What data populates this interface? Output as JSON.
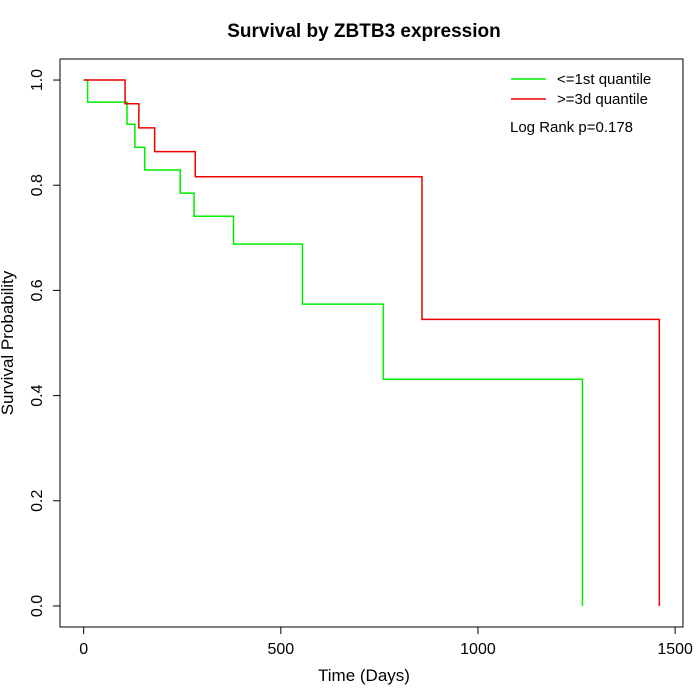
{
  "chart_data": {
    "type": "line",
    "title": "Survival by ZBTB3 expression",
    "xlabel": "Time (Days)",
    "ylabel": "Survival Probability",
    "xlim": [
      -60,
      1520
    ],
    "ylim": [
      -0.04,
      1.04
    ],
    "x_ticks": [
      0,
      500,
      1000,
      1500
    ],
    "x_tick_labels": [
      "0",
      "500",
      "1000",
      "1500"
    ],
    "y_ticks": [
      0.0,
      0.2,
      0.4,
      0.6,
      0.8,
      1.0
    ],
    "y_tick_labels": [
      "0.0",
      "0.2",
      "0.4",
      "0.6",
      "0.8",
      "1.0"
    ],
    "grid": false,
    "legend_position": "top-right",
    "annotation": "Log Rank p=0.178",
    "series": [
      {
        "name": "<=1st quantile",
        "color": "#00ee00",
        "step": true,
        "x": [
          0,
          10,
          110,
          130,
          155,
          245,
          280,
          380,
          555,
          760,
          1265
        ],
        "y": [
          1.0,
          0.958,
          0.916,
          0.872,
          0.829,
          0.785,
          0.741,
          0.688,
          0.574,
          0.431,
          0.0
        ]
      },
      {
        "name": ">=3d quantile",
        "color": "#ee0000",
        "step": true,
        "x": [
          0,
          105,
          140,
          180,
          283,
          858,
          1460
        ],
        "y": [
          1.0,
          0.955,
          0.909,
          0.864,
          0.816,
          0.545,
          0.0
        ]
      }
    ]
  }
}
